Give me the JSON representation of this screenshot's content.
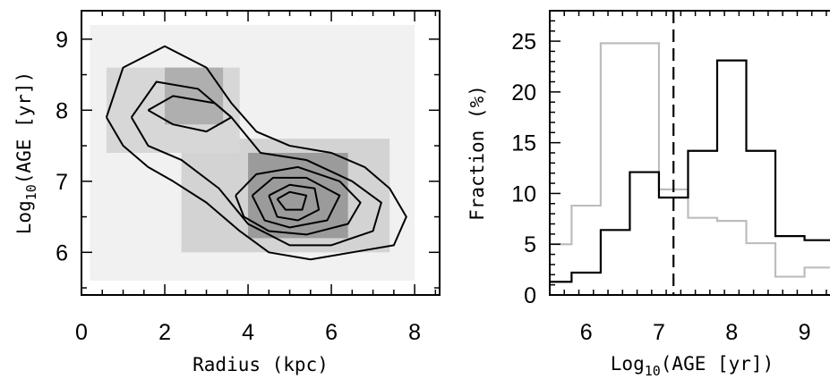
{
  "chart_data": [
    {
      "type": "heatmap",
      "title": "",
      "xlabel": "Radius (kpc)",
      "ylabel": {
        "prefix": "Log",
        "sub": "10",
        "suffix": "(AGE [yr])"
      },
      "xlim": [
        0,
        8.6
      ],
      "ylim": [
        5.4,
        9.4
      ],
      "xticks": [
        0,
        2,
        4,
        6,
        8
      ],
      "yticks": [
        6,
        7,
        8,
        9
      ],
      "grid": false,
      "density_cells": [
        {
          "x": [
            2,
            3.4
          ],
          "y": [
            7.8,
            8.6
          ],
          "v": 0.4
        },
        {
          "x": [
            4,
            6.4
          ],
          "y": [
            6.2,
            7.4
          ],
          "v": 0.5
        },
        {
          "x": [
            4.4,
            5.8
          ],
          "y": [
            6.3,
            7.1
          ],
          "v": 0.7
        },
        {
          "x": [
            4.8,
            5.2
          ],
          "y": [
            6.4,
            7.0
          ],
          "v": 0.85
        },
        {
          "x": [
            0.6,
            3.8
          ],
          "y": [
            7.4,
            8.6
          ],
          "v": 0.2
        },
        {
          "x": [
            2.4,
            7.4
          ],
          "y": [
            6.0,
            7.6
          ],
          "v": 0.22
        },
        {
          "x": [
            0.2,
            8.0
          ],
          "y": [
            5.6,
            9.2
          ],
          "v": 0.07
        }
      ],
      "contours": [
        [
          [
            0.6,
            7.9
          ],
          [
            1.0,
            8.6
          ],
          [
            2.0,
            8.9
          ],
          [
            3.0,
            8.6
          ],
          [
            3.6,
            8.1
          ],
          [
            4.2,
            7.7
          ],
          [
            5.0,
            7.5
          ],
          [
            6.0,
            7.4
          ],
          [
            6.8,
            7.2
          ],
          [
            7.4,
            6.9
          ],
          [
            7.8,
            6.5
          ],
          [
            7.5,
            6.1
          ],
          [
            6.5,
            6.0
          ],
          [
            5.5,
            5.9
          ],
          [
            4.5,
            6.0
          ],
          [
            3.8,
            6.3
          ],
          [
            3.0,
            6.7
          ],
          [
            2.2,
            7.0
          ],
          [
            1.6,
            7.2
          ],
          [
            1.0,
            7.5
          ],
          [
            0.6,
            7.9
          ]
        ],
        [
          [
            1.2,
            7.9
          ],
          [
            1.8,
            8.4
          ],
          [
            2.8,
            8.3
          ],
          [
            3.6,
            7.9
          ],
          [
            4.3,
            7.4
          ],
          [
            5.4,
            7.3
          ],
          [
            6.5,
            7.0
          ],
          [
            7.2,
            6.7
          ],
          [
            7.0,
            6.3
          ],
          [
            6.0,
            6.1
          ],
          [
            5.0,
            6.1
          ],
          [
            4.0,
            6.4
          ],
          [
            3.3,
            6.9
          ],
          [
            2.4,
            7.3
          ],
          [
            1.6,
            7.5
          ],
          [
            1.2,
            7.9
          ]
        ],
        [
          [
            1.6,
            8.0
          ],
          [
            2.2,
            8.2
          ],
          [
            3.2,
            8.1
          ],
          [
            3.6,
            7.9
          ],
          [
            3.0,
            7.7
          ],
          [
            2.2,
            7.8
          ],
          [
            1.6,
            8.0
          ]
        ],
        [
          [
            3.7,
            6.8
          ],
          [
            4.2,
            7.1
          ],
          [
            5.2,
            7.2
          ],
          [
            6.2,
            7.0
          ],
          [
            6.7,
            6.7
          ],
          [
            6.4,
            6.4
          ],
          [
            5.4,
            6.25
          ],
          [
            4.5,
            6.3
          ],
          [
            3.9,
            6.5
          ],
          [
            3.7,
            6.8
          ]
        ],
        [
          [
            4.1,
            6.8
          ],
          [
            4.6,
            7.05
          ],
          [
            5.4,
            7.05
          ],
          [
            6.2,
            6.8
          ],
          [
            5.9,
            6.45
          ],
          [
            5.0,
            6.35
          ],
          [
            4.4,
            6.45
          ],
          [
            4.1,
            6.8
          ]
        ],
        [
          [
            4.5,
            6.8
          ],
          [
            5.0,
            6.95
          ],
          [
            5.6,
            6.9
          ],
          [
            5.7,
            6.6
          ],
          [
            5.2,
            6.45
          ],
          [
            4.7,
            6.5
          ],
          [
            4.5,
            6.8
          ]
        ],
        [
          [
            4.7,
            6.75
          ],
          [
            5.0,
            6.85
          ],
          [
            5.4,
            6.8
          ],
          [
            5.3,
            6.6
          ],
          [
            4.9,
            6.6
          ],
          [
            4.7,
            6.75
          ]
        ]
      ]
    },
    {
      "type": "line",
      "title": "",
      "xlabel": {
        "prefix": "Log",
        "sub": "10",
        "suffix": "(AGE [yr])"
      },
      "ylabel": "Fraction (%)",
      "xlim": [
        5.5,
        9.35
      ],
      "ylim": [
        0,
        28
      ],
      "xticks": [
        6,
        7,
        8,
        9
      ],
      "yticks": [
        0,
        5,
        10,
        15,
        20,
        25
      ],
      "grid": false,
      "series": [
        {
          "style": "step",
          "color": "#000000",
          "edges": [
            5.4,
            5.8,
            6.2,
            6.6,
            7.0,
            7.4,
            7.8,
            8.2,
            8.6,
            9.0,
            9.4
          ],
          "values": [
            1.3,
            2.2,
            6.4,
            12.1,
            9.6,
            14.2,
            23.1,
            14.2,
            5.8,
            5.4
          ]
        },
        {
          "style": "step",
          "color": "#bdbdbd",
          "edges": [
            5.4,
            5.8,
            6.2,
            6.6,
            7.0,
            7.4,
            7.8,
            8.2,
            8.6,
            9.0,
            9.4
          ],
          "values": [
            5.0,
            8.8,
            24.8,
            24.8,
            10.4,
            7.6,
            7.3,
            5.1,
            1.8,
            2.7
          ]
        }
      ],
      "vline": {
        "x": 7.2,
        "style": "dashed"
      }
    }
  ]
}
